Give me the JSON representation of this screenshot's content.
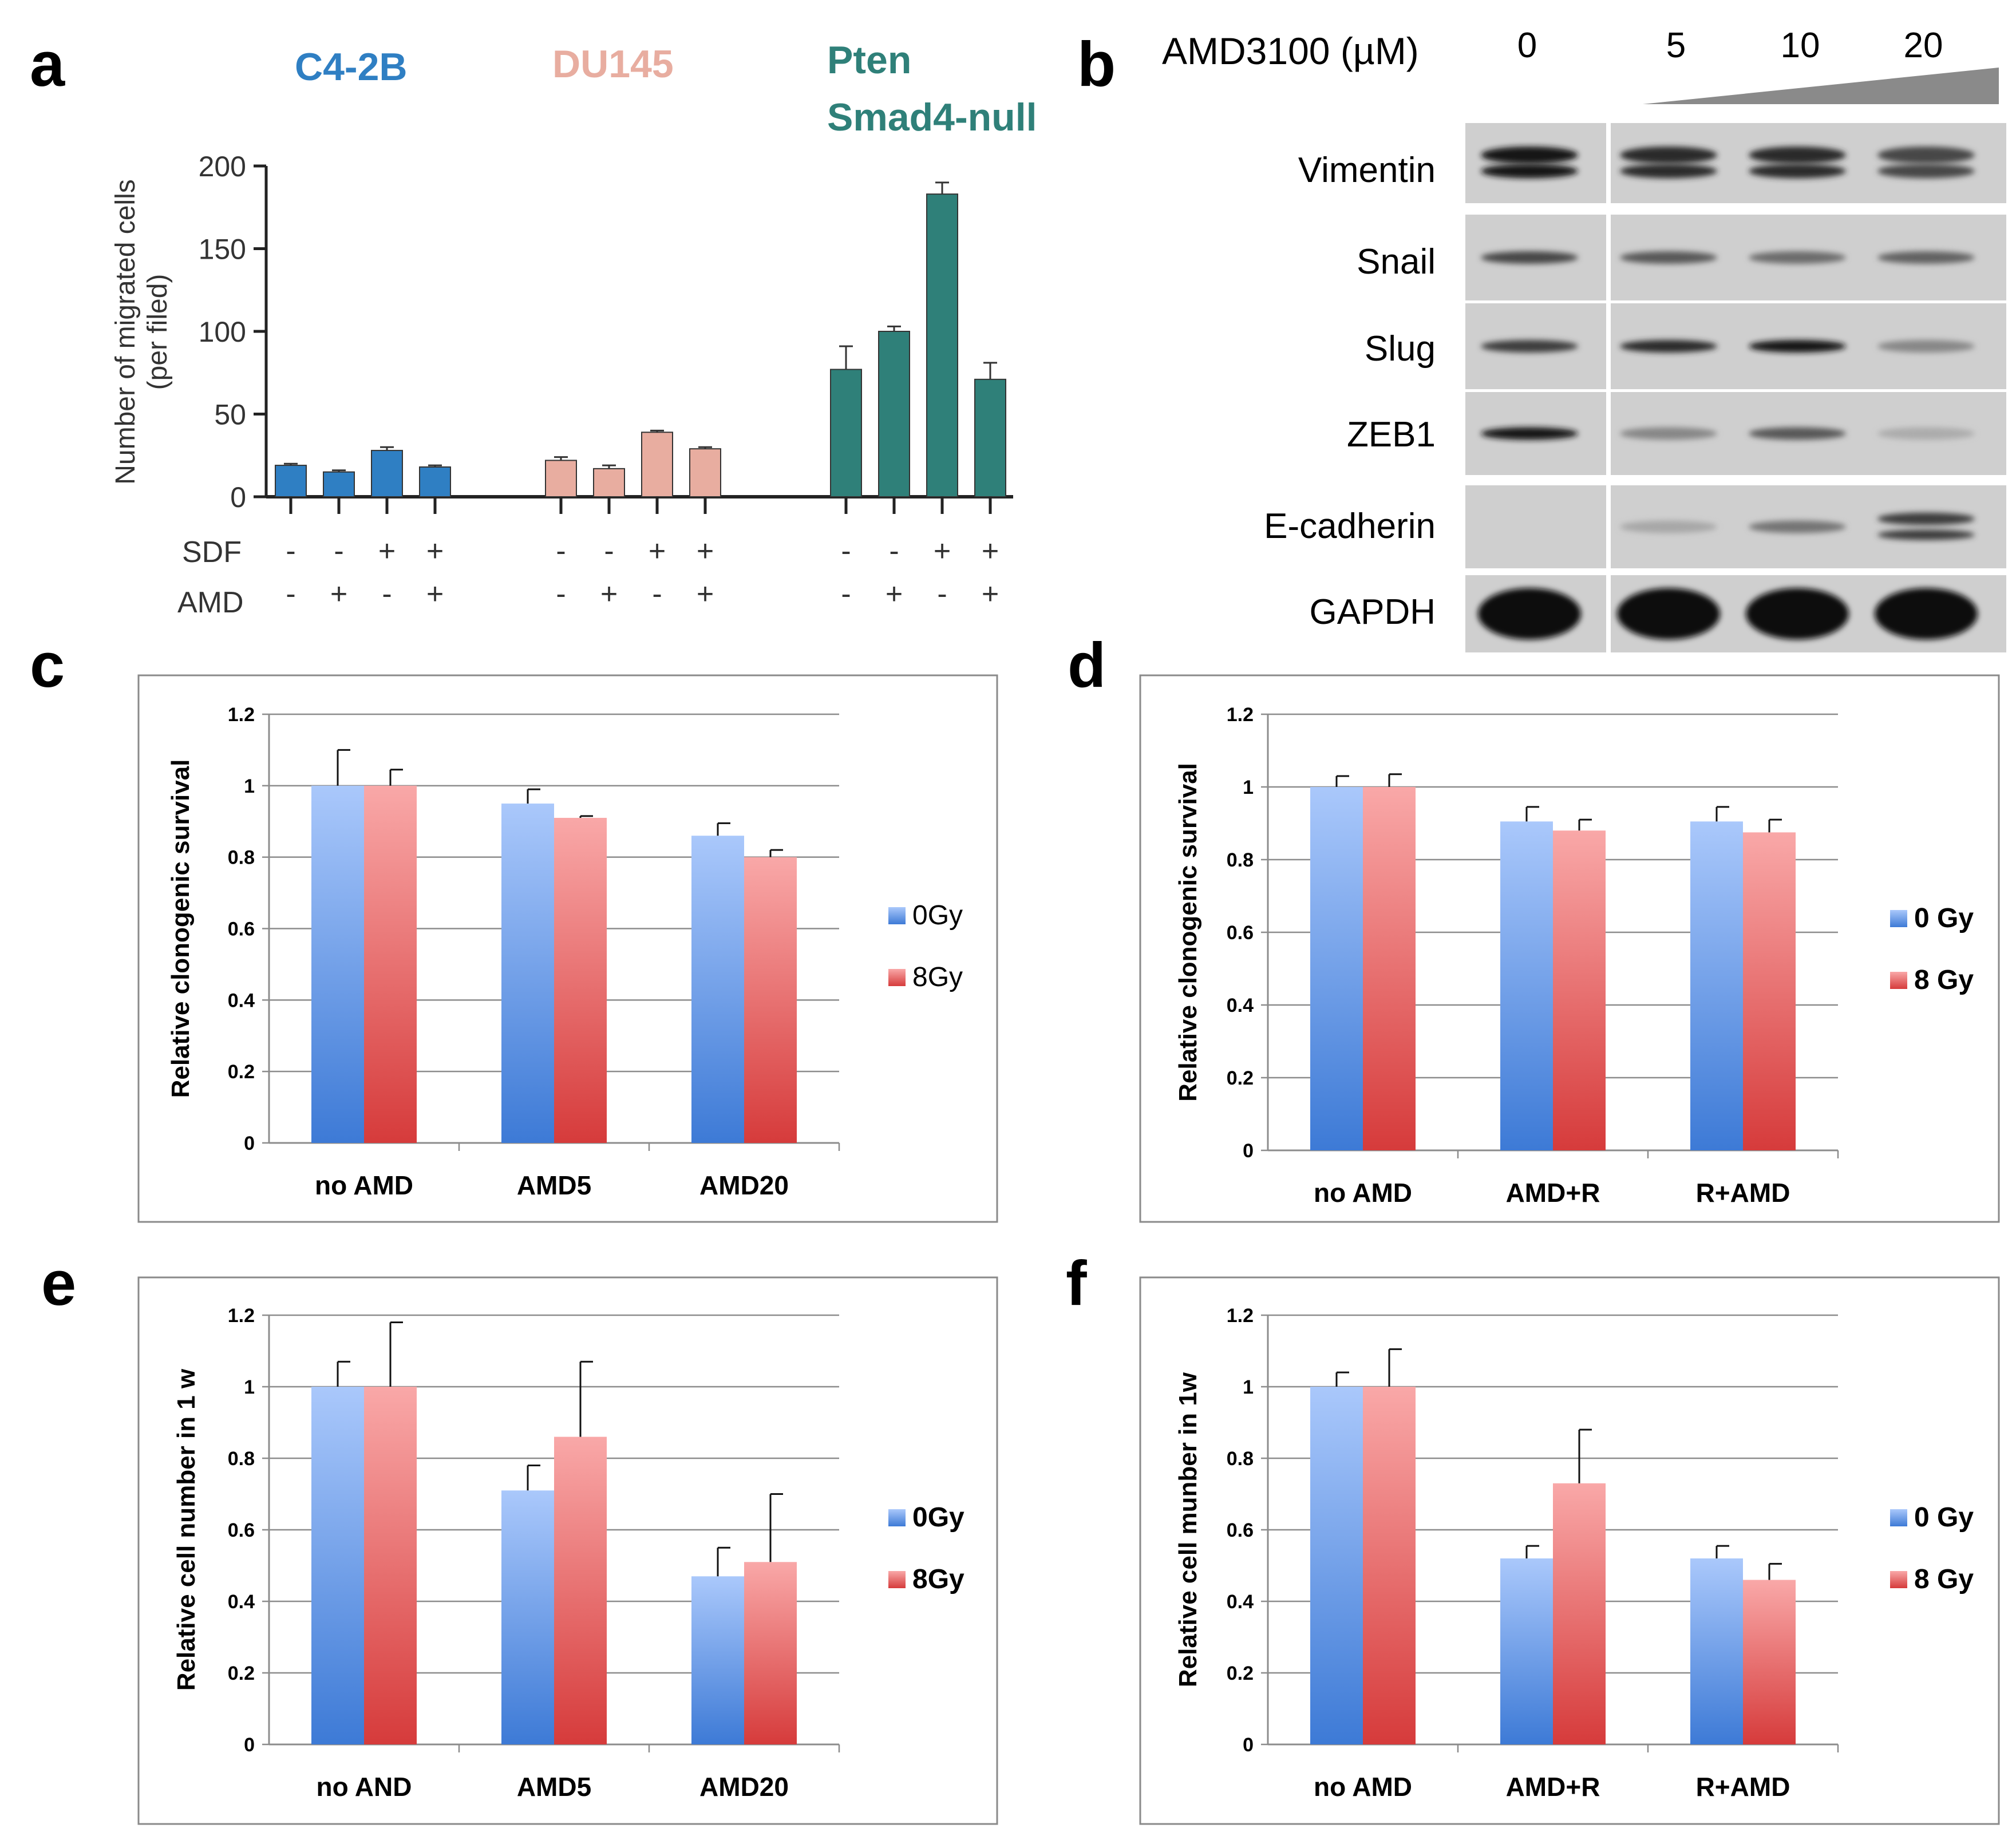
{
  "panel_labels": [
    "a",
    "b",
    "c",
    "d",
    "e",
    "f"
  ],
  "colors": {
    "c42b": "#2f7fc3",
    "du145": "#e8ada0",
    "pten": "#2f8079",
    "blue_top": "#aac8fb",
    "blue_bottom": "#3d7ad6",
    "red_top": "#f9a8a8",
    "red_bottom": "#d63b3b"
  },
  "panel_a": {
    "groups": [
      {
        "name": "C4-2B",
        "color": "#2f7fc3"
      },
      {
        "name": "DU145",
        "color": "#e8ada0"
      },
      {
        "name": "Pten\nSmad4-null",
        "name_lines": [
          "Pten",
          "Smad4-null"
        ],
        "color": "#2f8079"
      }
    ],
    "ylabel_lines": [
      "Number of migrated cells",
      "(per filed)"
    ],
    "row_labels": [
      "SDF",
      "AMD"
    ],
    "sdf": [
      "-",
      "-",
      "+",
      "+"
    ],
    "amd": [
      "-",
      "+",
      "-",
      "+"
    ]
  },
  "panel_b": {
    "dose_label": "AMD3100 (µM)",
    "doses": [
      "0",
      "5",
      "10",
      "20"
    ],
    "proteins": [
      "Vimentin",
      "Snail",
      "Slug",
      "ZEB1",
      "E-cadherin",
      "GAPDH"
    ]
  },
  "chart_data": [
    {
      "panel": "a",
      "type": "bar",
      "ylabel": "Number of migrated cells (per filed)",
      "ylim": [
        0,
        200
      ],
      "yticks": [
        0,
        50,
        100,
        150,
        200
      ],
      "grid": false,
      "categories": [
        "SDF- AMD-",
        "SDF- AMD+",
        "SDF+ AMD-",
        "SDF+ AMD+"
      ],
      "series": [
        {
          "name": "C4-2B",
          "values": [
            19,
            15,
            28,
            18
          ],
          "errors": [
            1,
            1,
            2,
            1
          ]
        },
        {
          "name": "DU145",
          "values": [
            22,
            17,
            39,
            29
          ],
          "errors": [
            2,
            2,
            1,
            1
          ]
        },
        {
          "name": "Pten Smad4-null",
          "values": [
            77,
            100,
            183,
            71
          ],
          "errors": [
            14,
            3,
            7,
            10
          ]
        }
      ]
    },
    {
      "panel": "c",
      "type": "bar",
      "ylabel": "Relative clonogenic survival",
      "ylim": [
        0,
        1.2
      ],
      "yticks": [
        "0",
        "0.2",
        "0.4",
        "0.6",
        "0.8",
        "1",
        "1.2"
      ],
      "grid": true,
      "legend_position": "right",
      "categories": [
        "no AMD",
        "AMD5",
        "AMD20"
      ],
      "series": [
        {
          "name": "0Gy",
          "values": [
            1.0,
            0.95,
            0.86
          ],
          "errors": [
            0.1,
            0.04,
            0.035
          ]
        },
        {
          "name": "8Gy",
          "values": [
            1.0,
            0.91,
            0.8
          ],
          "errors": [
            0.045,
            0.005,
            0.02
          ]
        }
      ]
    },
    {
      "panel": "d",
      "type": "bar",
      "ylabel": "Relative clonogenic survival",
      "ylim": [
        0,
        1.2
      ],
      "yticks": [
        "0",
        "0.2",
        "0.4",
        "0.6",
        "0.8",
        "1",
        "1.2"
      ],
      "grid": true,
      "legend_position": "right",
      "categories": [
        "no AMD",
        "AMD+R",
        "R+AMD"
      ],
      "series": [
        {
          "name": "0 Gy",
          "values": [
            1.0,
            0.905,
            0.905
          ],
          "errors": [
            0.03,
            0.04,
            0.04
          ]
        },
        {
          "name": "8 Gy",
          "values": [
            1.0,
            0.88,
            0.875
          ],
          "errors": [
            0.035,
            0.03,
            0.035
          ]
        }
      ]
    },
    {
      "panel": "e",
      "type": "bar",
      "ylabel": "Relative cell number in 1 w",
      "ylim": [
        0,
        1.2
      ],
      "yticks": [
        "0",
        "0.2",
        "0.4",
        "0.6",
        "0.8",
        "1",
        "1.2"
      ],
      "grid": true,
      "legend_position": "right",
      "categories": [
        "no AND",
        "AMD5",
        "AMD20"
      ],
      "series": [
        {
          "name": "0Gy",
          "values": [
            1.0,
            0.71,
            0.47
          ],
          "errors": [
            0.07,
            0.07,
            0.08
          ]
        },
        {
          "name": "8Gy",
          "values": [
            1.0,
            0.86,
            0.51
          ],
          "errors": [
            0.18,
            0.21,
            0.19
          ]
        }
      ]
    },
    {
      "panel": "f",
      "type": "bar",
      "ylabel": "Relative cell munber in 1w",
      "ylim": [
        0,
        1.2
      ],
      "yticks": [
        "0",
        "0.2",
        "0.4",
        "0.6",
        "0.8",
        "1",
        "1.2"
      ],
      "grid": true,
      "legend_position": "right",
      "categories": [
        "no AMD",
        "AMD+R",
        "R+AMD"
      ],
      "series": [
        {
          "name": "0 Gy",
          "values": [
            1.0,
            0.52,
            0.52
          ],
          "errors": [
            0.04,
            0.035,
            0.035
          ]
        },
        {
          "name": "8 Gy",
          "values": [
            1.0,
            0.73,
            0.46
          ],
          "errors": [
            0.105,
            0.15,
            0.045
          ]
        }
      ]
    }
  ]
}
